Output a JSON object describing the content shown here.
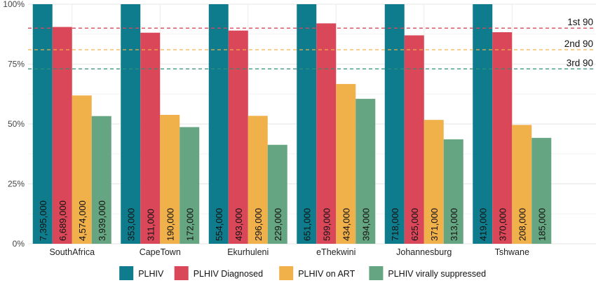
{
  "chart_data": {
    "type": "bar",
    "categories": [
      "SouthAfrica",
      "CapeTown",
      "Ekurhuleni",
      "eThekwini",
      "Johannesburg",
      "Tshwane"
    ],
    "series": [
      {
        "name": "PLHIV",
        "color": "#0e7c8c",
        "values": [
          100,
          100,
          100,
          100,
          100,
          100
        ],
        "labels": [
          "7,395,000",
          "353,000",
          "554,000",
          "651,000",
          "718,000",
          "419,000"
        ]
      },
      {
        "name": "PLHIV Diagnosed",
        "color": "#d94759",
        "values": [
          90.5,
          88.1,
          89.0,
          92.0,
          87.0,
          88.3
        ],
        "labels": [
          "6,689,000",
          "311,000",
          "493,000",
          "599,000",
          "625,000",
          "370,000"
        ]
      },
      {
        "name": "PLHIV on ART",
        "color": "#f0b04a",
        "values": [
          61.9,
          53.8,
          53.4,
          66.7,
          51.7,
          49.6
        ],
        "labels": [
          "4,574,000",
          "190,000",
          "296,000",
          "434,000",
          "371,000",
          "208,000"
        ]
      },
      {
        "name": "PLHIV virally suppressed",
        "color": "#66a581",
        "values": [
          53.3,
          48.7,
          41.3,
          60.5,
          43.6,
          44.2
        ],
        "labels": [
          "3,939,000",
          "172,000",
          "229,000",
          "394,000",
          "313,000",
          "185,000"
        ]
      }
    ],
    "ylim": [
      0,
      100
    ],
    "yticks": [
      "0%",
      "25%",
      "50%",
      "75%",
      "100%"
    ],
    "ytick_values": [
      0,
      25,
      50,
      75,
      100
    ],
    "targets": [
      {
        "label": "1st 90",
        "value": 90,
        "color": "#d94759"
      },
      {
        "label": "2nd 90",
        "value": 81,
        "color": "#f0b04a"
      },
      {
        "label": "3rd 90",
        "value": 73,
        "color": "#2f8f78"
      }
    ],
    "grid": true,
    "legend_position": "bottom"
  }
}
